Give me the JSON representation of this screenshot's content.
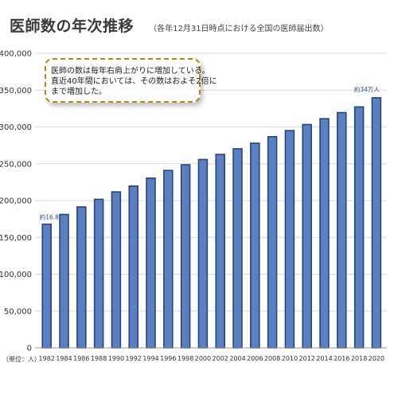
{
  "chart_data": {
    "type": "bar",
    "title": "医師数の年次推移",
    "subtitle": "（各年12月31日時点における全国の医師届出数）",
    "unit_label": "（単位：人）",
    "categories": [
      "1982",
      "1984",
      "1986",
      "1988",
      "1990",
      "1992",
      "1994",
      "1996",
      "1998",
      "2000",
      "2002",
      "2004",
      "2006",
      "2008",
      "2010",
      "2012",
      "2014",
      "2016",
      "2018",
      "2020"
    ],
    "values": [
      167952,
      181101,
      191346,
      201658,
      211797,
      219704,
      230519,
      240908,
      248611,
      255792,
      262687,
      270371,
      277927,
      286699,
      295049,
      303268,
      311205,
      319480,
      327210,
      339623
    ],
    "ylim": [
      0,
      400000
    ],
    "yticks": [
      "0",
      "50,000",
      "100,000",
      "150,000",
      "200,000",
      "250,000",
      "300,000",
      "350,000",
      "400,000"
    ],
    "grid": true,
    "bar_color": "#5b7fc0",
    "bar_edge_color": "#26457f",
    "annotations": {
      "first": "約16.8万",
      "last": "約34万人"
    },
    "callout": {
      "line1": "医師の数は毎年右肩上がりに増加している。",
      "line2": "直近40年間においては、その数はおよそ2倍に",
      "line3": "まで増加した。"
    }
  }
}
